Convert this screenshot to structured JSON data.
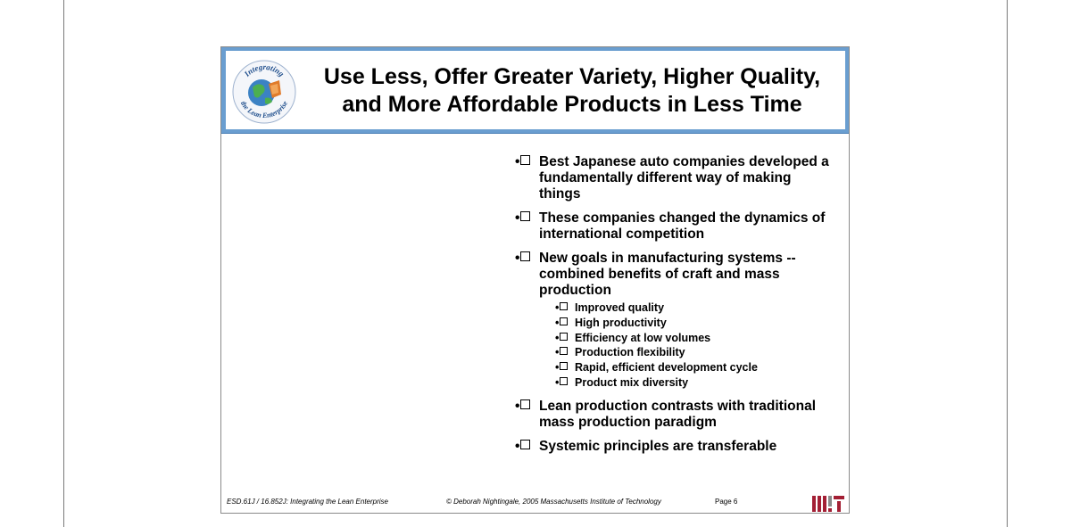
{
  "slide": {
    "title_line1": "Use Less, Offer Greater Variety, Higher Quality,",
    "title_line2": "and More Affordable Products in Less Time",
    "logo_text_top": "Integrating",
    "logo_text_bottom": "the Lean Enterprise",
    "bullet_marker": "•",
    "bullets": [
      {
        "text": "Best Japanese auto companies developed a fundamentally different way of making things"
      },
      {
        "text": "These companies changed the dynamics of international competition"
      },
      {
        "text": "New goals in manufacturing systems -- combined benefits of craft and mass production"
      },
      {
        "text": "Lean production contrasts with traditional mass production paradigm"
      },
      {
        "text": "Systemic principles are transferable"
      }
    ],
    "subbullets": [
      "Improved quality",
      "High productivity",
      "Efficiency at low volumes",
      "Production flexibility",
      "Rapid, efficient development cycle",
      "Product mix diversity"
    ],
    "footer": {
      "course": "ESD.61J / 16.852J: Integrating the Lean Enterprise",
      "copyright": "© Deborah Nightingale, 2005 Massachusetts Institute of Technology",
      "page": "Page 6"
    },
    "colors": {
      "header_blue": "#6a9ed0",
      "mit_logo": "#a31f34"
    }
  }
}
